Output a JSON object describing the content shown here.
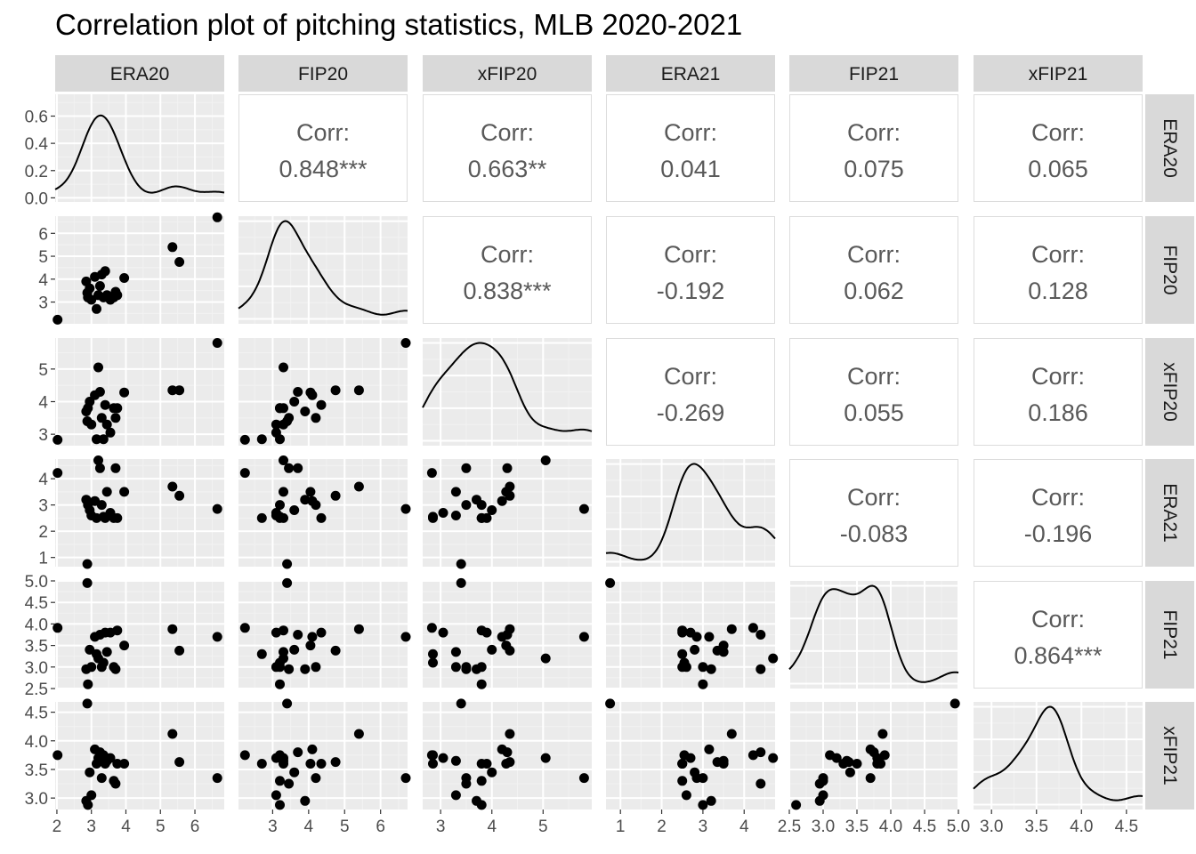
{
  "chart_data": {
    "type": "scatter",
    "title": "Correlation plot of pitching statistics, MLB 2020-2021",
    "variables": [
      "ERA20",
      "FIP20",
      "xFIP20",
      "ERA21",
      "FIP21",
      "xFIP21"
    ],
    "corr_label": "Corr:",
    "correlations": [
      {
        "row": "FIP20",
        "col": "ERA20",
        "value": "0.848***"
      },
      {
        "row": "xFIP20",
        "col": "ERA20",
        "value": "0.663**"
      },
      {
        "row": "ERA21",
        "col": "ERA20",
        "value": "0.041"
      },
      {
        "row": "FIP21",
        "col": "ERA20",
        "value": "0.075"
      },
      {
        "row": "xFIP21",
        "col": "ERA20",
        "value": "0.065"
      },
      {
        "row": "xFIP20",
        "col": "FIP20",
        "value": "0.838***"
      },
      {
        "row": "ERA21",
        "col": "FIP20",
        "value": "-0.192"
      },
      {
        "row": "FIP21",
        "col": "FIP20",
        "value": "0.062"
      },
      {
        "row": "xFIP21",
        "col": "FIP20",
        "value": "0.128"
      },
      {
        "row": "ERA21",
        "col": "xFIP20",
        "value": "-0.269"
      },
      {
        "row": "FIP21",
        "col": "xFIP20",
        "value": "0.055"
      },
      {
        "row": "xFIP21",
        "col": "xFIP20",
        "value": "0.186"
      },
      {
        "row": "FIP21",
        "col": "ERA21",
        "value": "-0.083"
      },
      {
        "row": "xFIP21",
        "col": "ERA21",
        "value": "-0.196"
      },
      {
        "row": "xFIP21",
        "col": "FIP21",
        "value": "0.864***"
      }
    ],
    "axes": {
      "ERA20": {
        "lim": [
          1.95,
          6.85
        ],
        "ticks": [
          "2",
          "3",
          "4",
          "5",
          "6"
        ]
      },
      "FIP20": {
        "lim": [
          2.05,
          6.75
        ],
        "ticks": [
          "3",
          "4",
          "5",
          "6"
        ]
      },
      "xFIP20": {
        "lim": [
          2.65,
          5.95
        ],
        "ticks": [
          "3",
          "4",
          "5"
        ]
      },
      "ERA21": {
        "lim": [
          0.65,
          4.75
        ],
        "ticks": [
          "1",
          "2",
          "3",
          "4"
        ]
      },
      "FIP21": {
        "lim": [
          2.5,
          5.0
        ],
        "ticks": [
          "2.5",
          "3.0",
          "3.5",
          "4.0",
          "4.5",
          "5.0"
        ]
      },
      "xFIP21": {
        "lim": [
          2.8,
          4.68
        ],
        "ticks": [
          "3.0",
          "3.5",
          "4.0",
          "4.5"
        ]
      }
    },
    "density_axis": {
      "lim": [
        -0.03,
        0.76
      ],
      "ticks": [
        "0.0",
        "0.2",
        "0.4",
        "0.6"
      ]
    },
    "pitchers": [
      {
        "ERA20": 2.02,
        "FIP20": 2.23,
        "xFIP20": 2.83,
        "ERA21": 4.22,
        "FIP21": 3.91,
        "xFIP21": 3.75
      },
      {
        "ERA20": 2.85,
        "FIP20": 3.9,
        "xFIP20": 3.7,
        "ERA21": 3.2,
        "FIP21": 2.95,
        "xFIP21": 2.95
      },
      {
        "ERA20": 2.88,
        "FIP20": 3.4,
        "xFIP20": 3.4,
        "ERA21": 0.75,
        "FIP21": 4.95,
        "xFIP21": 4.65
      },
      {
        "ERA20": 2.9,
        "FIP20": 3.2,
        "xFIP20": 3.8,
        "ERA21": 3.0,
        "FIP21": 2.6,
        "xFIP21": 2.88
      },
      {
        "ERA20": 2.95,
        "FIP20": 3.6,
        "xFIP20": 4.0,
        "ERA21": 2.8,
        "FIP21": 3.4,
        "xFIP21": 3.45
      },
      {
        "ERA20": 3.0,
        "FIP20": 3.1,
        "xFIP20": 3.3,
        "ERA21": 2.6,
        "FIP21": 3.0,
        "xFIP21": 3.05
      },
      {
        "ERA20": 3.1,
        "FIP20": 4.1,
        "xFIP20": 4.2,
        "ERA21": 3.15,
        "FIP21": 3.7,
        "xFIP21": 3.85
      },
      {
        "ERA20": 3.15,
        "FIP20": 2.7,
        "xFIP20": 2.85,
        "ERA21": 2.5,
        "FIP21": 3.3,
        "xFIP21": 3.6
      },
      {
        "ERA20": 3.2,
        "FIP20": 3.3,
        "xFIP20": 5.05,
        "ERA21": 4.7,
        "FIP21": 3.2,
        "xFIP21": 3.7
      },
      {
        "ERA20": 3.25,
        "FIP20": 3.7,
        "xFIP20": 4.3,
        "ERA21": 4.4,
        "FIP21": 3.75,
        "xFIP21": 3.8
      },
      {
        "ERA20": 3.3,
        "FIP20": 4.2,
        "xFIP20": 3.5,
        "ERA21": 3.0,
        "FIP21": 3.0,
        "xFIP21": 3.35
      },
      {
        "ERA20": 3.35,
        "FIP20": 3.2,
        "xFIP20": 2.85,
        "ERA21": 2.55,
        "FIP21": 3.1,
        "xFIP21": 3.75
      },
      {
        "ERA20": 3.4,
        "FIP20": 4.35,
        "xFIP20": 3.9,
        "ERA21": 2.5,
        "FIP21": 3.8,
        "xFIP21": 3.6
      },
      {
        "ERA20": 3.45,
        "FIP20": 3.3,
        "xFIP20": 3.3,
        "ERA21": 3.5,
        "FIP21": 3.35,
        "xFIP21": 3.65
      },
      {
        "ERA20": 3.55,
        "FIP20": 3.1,
        "xFIP20": 3.05,
        "ERA21": 2.7,
        "FIP21": 3.8,
        "xFIP21": 3.7
      },
      {
        "ERA20": 3.65,
        "FIP20": 3.2,
        "xFIP20": 3.8,
        "ERA21": 2.5,
        "FIP21": 3.0,
        "xFIP21": 3.3
      },
      {
        "ERA20": 3.7,
        "FIP20": 3.45,
        "xFIP20": 3.5,
        "ERA21": 4.4,
        "FIP21": 2.95,
        "xFIP21": 3.25
      },
      {
        "ERA20": 3.75,
        "FIP20": 3.3,
        "xFIP20": 3.8,
        "ERA21": 2.5,
        "FIP21": 3.85,
        "xFIP21": 3.6
      },
      {
        "ERA20": 3.95,
        "FIP20": 4.05,
        "xFIP20": 4.28,
        "ERA21": 3.5,
        "FIP21": 3.5,
        "xFIP21": 3.6
      },
      {
        "ERA20": 5.35,
        "FIP20": 5.4,
        "xFIP20": 4.35,
        "ERA21": 3.7,
        "FIP21": 3.88,
        "xFIP21": 4.12
      },
      {
        "ERA20": 5.55,
        "FIP20": 4.75,
        "xFIP20": 4.35,
        "ERA21": 3.35,
        "FIP21": 3.38,
        "xFIP21": 3.63
      },
      {
        "ERA20": 6.65,
        "FIP20": 6.7,
        "xFIP20": 5.8,
        "ERA21": 2.85,
        "FIP21": 3.7,
        "xFIP21": 3.35
      }
    ],
    "grid": true,
    "legend": "none"
  }
}
